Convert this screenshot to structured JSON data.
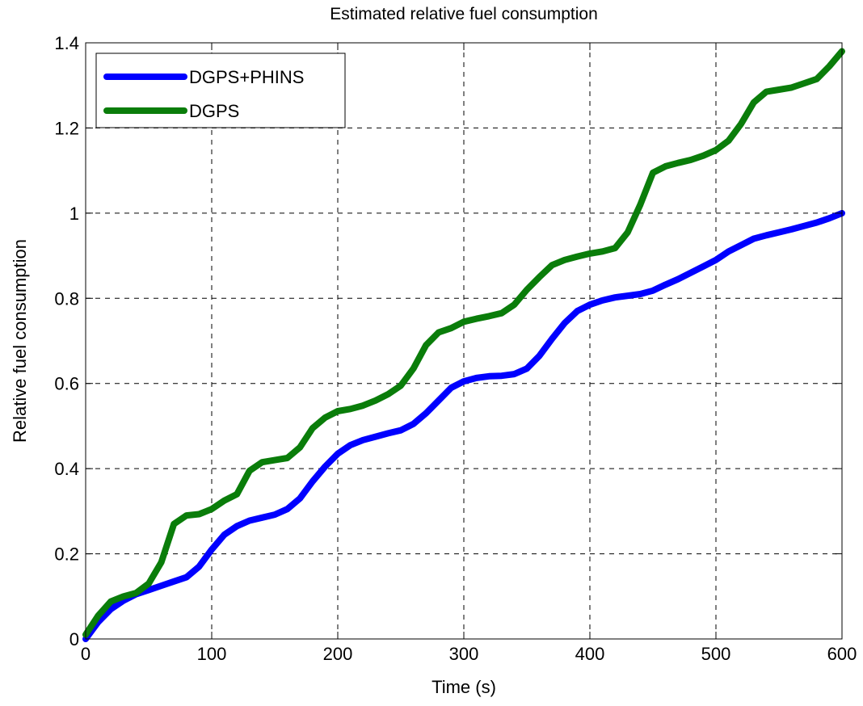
{
  "chart_data": {
    "type": "line",
    "title": "Estimated relative fuel consumption",
    "xlabel": "Time (s)",
    "ylabel": "Relative fuel consumption",
    "xlim": [
      0,
      600
    ],
    "ylim": [
      0,
      1.4
    ],
    "xticks": [
      0,
      100,
      200,
      300,
      400,
      500,
      600
    ],
    "yticks": [
      0,
      0.2,
      0.4,
      0.6,
      0.8,
      1,
      1.2,
      1.4
    ],
    "xtick_labels": [
      "0",
      "100",
      "200",
      "300",
      "400",
      "500",
      "600"
    ],
    "ytick_labels": [
      "0",
      "0.2",
      "0.4",
      "0.6",
      "0.8",
      "1",
      "1.2",
      "1.4"
    ],
    "grid": true,
    "legend_position": "top-left",
    "series": [
      {
        "name": "DGPS+PHINS",
        "color": "#0000ff",
        "x": [
          0,
          10,
          20,
          30,
          40,
          50,
          60,
          70,
          80,
          90,
          100,
          110,
          120,
          130,
          140,
          150,
          160,
          170,
          180,
          190,
          200,
          210,
          220,
          230,
          240,
          250,
          260,
          270,
          280,
          290,
          300,
          310,
          320,
          330,
          340,
          350,
          360,
          370,
          380,
          390,
          400,
          410,
          420,
          430,
          440,
          450,
          460,
          470,
          480,
          490,
          500,
          510,
          520,
          530,
          540,
          550,
          560,
          570,
          580,
          590,
          600
        ],
        "y": [
          0.0,
          0.04,
          0.07,
          0.09,
          0.105,
          0.115,
          0.125,
          0.135,
          0.145,
          0.17,
          0.21,
          0.245,
          0.265,
          0.278,
          0.285,
          0.292,
          0.305,
          0.33,
          0.37,
          0.405,
          0.435,
          0.455,
          0.467,
          0.475,
          0.483,
          0.49,
          0.505,
          0.53,
          0.56,
          0.59,
          0.605,
          0.613,
          0.617,
          0.618,
          0.622,
          0.635,
          0.665,
          0.705,
          0.742,
          0.77,
          0.785,
          0.795,
          0.802,
          0.806,
          0.81,
          0.818,
          0.832,
          0.845,
          0.86,
          0.875,
          0.89,
          0.91,
          0.925,
          0.94,
          0.948,
          0.955,
          0.962,
          0.97,
          0.978,
          0.988,
          1.0
        ]
      },
      {
        "name": "DGPS",
        "color": "#0a7d0a",
        "x": [
          0,
          10,
          20,
          30,
          40,
          50,
          60,
          70,
          80,
          90,
          100,
          110,
          120,
          130,
          140,
          150,
          160,
          170,
          180,
          190,
          200,
          210,
          220,
          230,
          240,
          250,
          260,
          270,
          280,
          290,
          300,
          310,
          320,
          330,
          340,
          350,
          360,
          370,
          380,
          390,
          400,
          410,
          420,
          430,
          440,
          450,
          460,
          470,
          480,
          490,
          500,
          510,
          520,
          530,
          540,
          550,
          560,
          570,
          580,
          590,
          600
        ],
        "y": [
          0.01,
          0.055,
          0.088,
          0.1,
          0.108,
          0.13,
          0.18,
          0.27,
          0.29,
          0.293,
          0.305,
          0.325,
          0.34,
          0.395,
          0.415,
          0.42,
          0.425,
          0.45,
          0.495,
          0.52,
          0.535,
          0.54,
          0.548,
          0.56,
          0.575,
          0.595,
          0.635,
          0.69,
          0.72,
          0.73,
          0.745,
          0.752,
          0.758,
          0.765,
          0.785,
          0.82,
          0.85,
          0.878,
          0.89,
          0.898,
          0.905,
          0.91,
          0.918,
          0.955,
          1.02,
          1.095,
          1.11,
          1.118,
          1.125,
          1.135,
          1.148,
          1.17,
          1.21,
          1.26,
          1.285,
          1.29,
          1.295,
          1.305,
          1.315,
          1.345,
          1.38
        ]
      }
    ]
  }
}
